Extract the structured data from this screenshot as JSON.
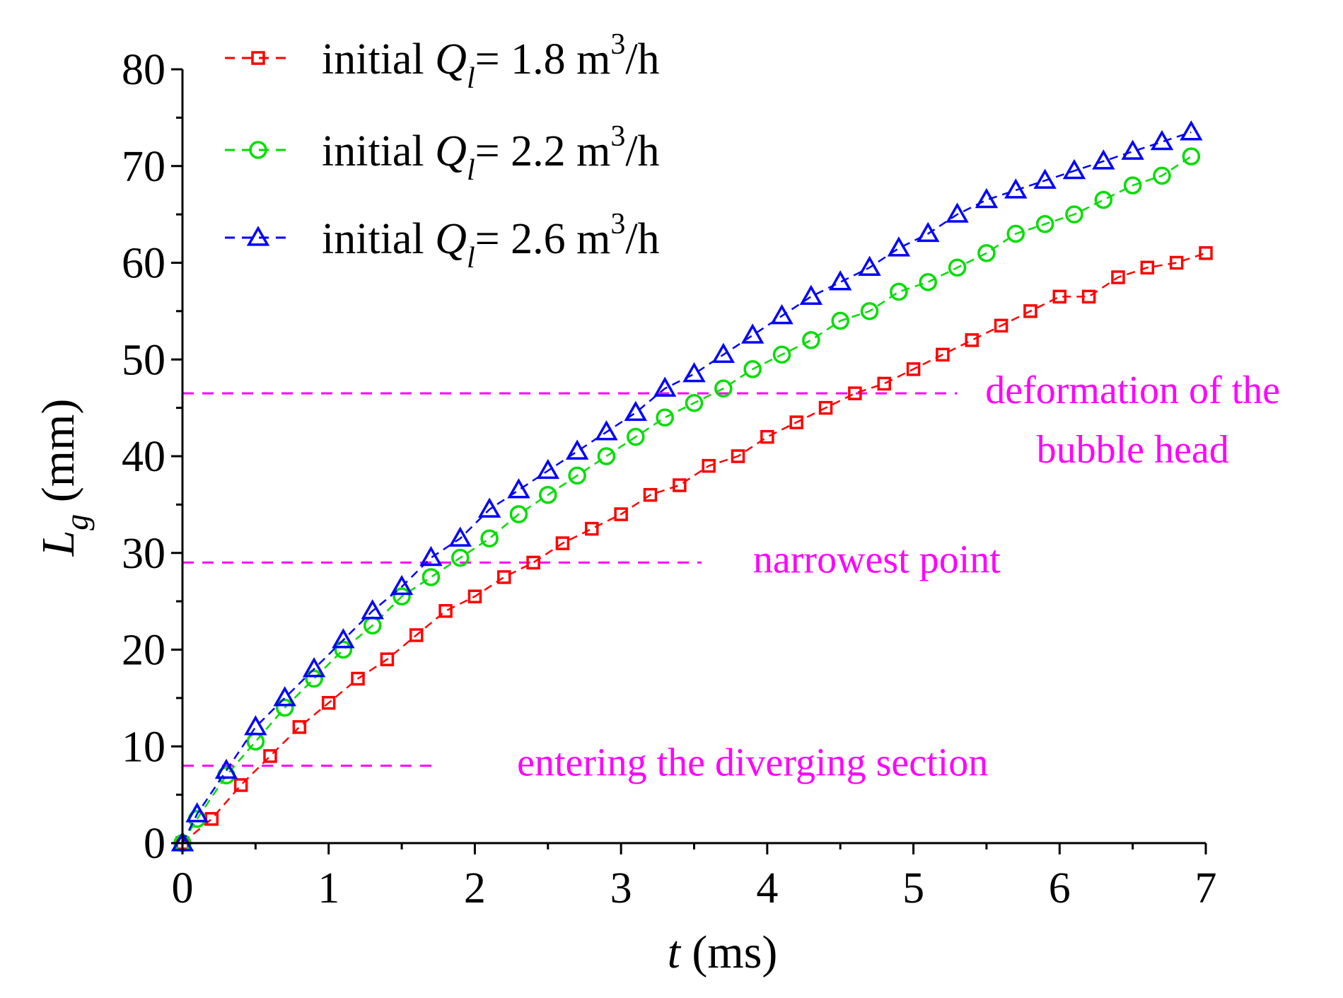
{
  "chart_data": {
    "type": "scatter",
    "title": "",
    "xlabel": {
      "var": "t",
      "unit": " (ms)"
    },
    "ylabel": {
      "var": "L",
      "sub": "g",
      "unit": " (mm)"
    },
    "xlim": [
      0,
      7
    ],
    "ylim": [
      0,
      80
    ],
    "xticks": [
      0,
      1,
      2,
      3,
      4,
      5,
      6,
      7
    ],
    "yticks": [
      0,
      10,
      20,
      30,
      40,
      50,
      60,
      70,
      80
    ],
    "xtick_labels": [
      "0",
      "1",
      "2",
      "3",
      "4",
      "5",
      "6",
      "7"
    ],
    "ytick_labels": [
      "0",
      "10",
      "20",
      "30",
      "40",
      "50",
      "60",
      "70",
      "80"
    ],
    "legend_position": "top-left",
    "series": [
      {
        "name": "initial Ql= 1.8 m3/h",
        "label_prefix": "initial ",
        "label_var": "Q",
        "label_sub": "l",
        "label_mid": "= 1.8 m",
        "label_sup": "3",
        "label_end": "/h",
        "color": "#ff0000",
        "marker": "square",
        "x": [
          0,
          0.2,
          0.4,
          0.6,
          0.8,
          1.0,
          1.2,
          1.4,
          1.6,
          1.8,
          2.0,
          2.2,
          2.4,
          2.6,
          2.8,
          3.0,
          3.2,
          3.4,
          3.6,
          3.8,
          4.0,
          4.2,
          4.4,
          4.6,
          4.8,
          5.0,
          5.2,
          5.4,
          5.6,
          5.8,
          6.0,
          6.2,
          6.4,
          6.6,
          6.8,
          7.0
        ],
        "y": [
          0,
          2.5,
          6,
          9,
          12,
          14.5,
          17,
          19,
          21.5,
          24,
          25.5,
          27.5,
          29,
          31,
          32.5,
          34,
          36,
          37,
          39,
          40,
          42,
          43.5,
          45,
          46.5,
          47.5,
          49,
          50.5,
          52,
          53.5,
          55,
          56.5,
          56.5,
          58.5,
          59.5,
          60,
          61
        ]
      },
      {
        "name": "initial Ql= 2.2 m3/h",
        "label_prefix": "initial ",
        "label_var": "Q",
        "label_sub": "l",
        "label_mid": "= 2.2 m",
        "label_sup": "3",
        "label_end": "/h",
        "color": "#00dd00",
        "marker": "circle",
        "x": [
          0,
          0.1,
          0.3,
          0.5,
          0.7,
          0.9,
          1.1,
          1.3,
          1.5,
          1.7,
          1.9,
          2.1,
          2.3,
          2.5,
          2.7,
          2.9,
          3.1,
          3.3,
          3.5,
          3.7,
          3.9,
          4.1,
          4.3,
          4.5,
          4.7,
          4.9,
          5.1,
          5.3,
          5.5,
          5.7,
          5.9,
          6.1,
          6.3,
          6.5,
          6.7,
          6.9
        ],
        "y": [
          0,
          2.5,
          7,
          10.5,
          14,
          17,
          20,
          22.5,
          25.5,
          27.5,
          29.5,
          31.5,
          34,
          36,
          38,
          40,
          42,
          44,
          45.5,
          47,
          49,
          50.5,
          52,
          54,
          55,
          57,
          58,
          59.5,
          61,
          63,
          64,
          65,
          66.5,
          68,
          69,
          71
        ]
      },
      {
        "name": "initial Ql= 2.6 m3/h",
        "label_prefix": "initial ",
        "label_var": "Q",
        "label_sub": "l",
        "label_mid": "= 2.6 m",
        "label_sup": "3",
        "label_end": "/h",
        "color": "#0000ff",
        "marker": "triangle",
        "x": [
          0,
          0.1,
          0.3,
          0.5,
          0.7,
          0.9,
          1.1,
          1.3,
          1.5,
          1.7,
          1.9,
          2.1,
          2.3,
          2.5,
          2.7,
          2.9,
          3.1,
          3.3,
          3.5,
          3.7,
          3.9,
          4.1,
          4.3,
          4.5,
          4.7,
          4.9,
          5.1,
          5.3,
          5.5,
          5.7,
          5.9,
          6.1,
          6.3,
          6.5,
          6.7,
          6.9
        ],
        "y": [
          0,
          3,
          7.5,
          12,
          15,
          18,
          21,
          24,
          26.5,
          29.5,
          31.5,
          34.5,
          36.5,
          38.5,
          40.5,
          42.5,
          44.5,
          47,
          48.5,
          50.5,
          52.5,
          54.5,
          56.5,
          58,
          59.5,
          61.5,
          63,
          65,
          66.5,
          67.5,
          68.5,
          69.5,
          70.5,
          71.5,
          72.5,
          73.5
        ]
      }
    ],
    "reference_lines": [
      {
        "y": 46.5,
        "x_start": 0,
        "x_end": 5.3,
        "color": "#ff00ff"
      },
      {
        "y": 29,
        "x_start": 0,
        "x_end": 3.55,
        "color": "#ff00ff"
      },
      {
        "y": 8,
        "x_start": 0,
        "x_end": 1.75,
        "color": "#ff00ff"
      }
    ],
    "annotations": [
      {
        "lines": [
          "deformation of the",
          "bubble head"
        ],
        "color": "#ff00ff",
        "x": 6.5,
        "y": 46.5
      },
      {
        "lines": [
          "narrowest point"
        ],
        "color": "#ff00ff",
        "x": 4.75,
        "y": 29
      },
      {
        "lines": [
          "entering the diverging section"
        ],
        "color": "#ff00ff",
        "x": 3.9,
        "y": 8
      }
    ]
  }
}
